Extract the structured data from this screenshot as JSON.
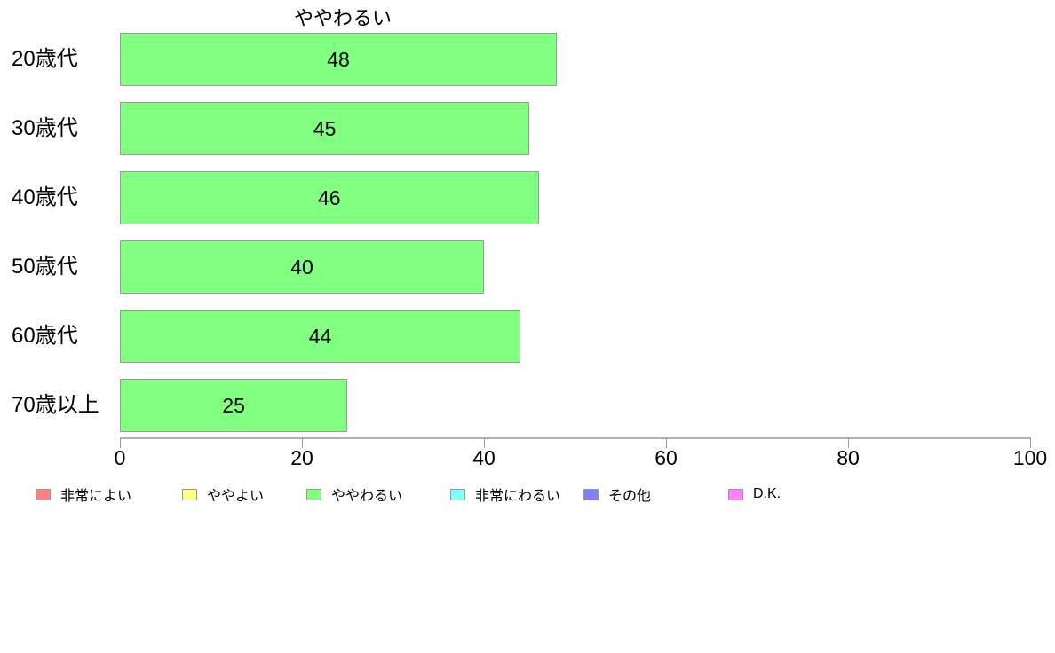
{
  "title": "ややわるい",
  "chart_data": {
    "type": "bar",
    "orientation": "horizontal",
    "title": "ややわるい",
    "categories": [
      "20歳代",
      "30歳代",
      "40歳代",
      "50歳代",
      "60歳代",
      "70歳以上"
    ],
    "values": [
      48,
      45,
      46,
      40,
      44,
      25
    ],
    "value_labels_shown": true,
    "xlabel": "",
    "ylabel": "",
    "xlim": [
      0,
      100
    ],
    "x_ticks": [
      0,
      20,
      40,
      60,
      80,
      100
    ],
    "grid": false,
    "bar_color": "#80FF80",
    "bar_border_color": "#9c9c9c",
    "legend_position": "bottom-left"
  },
  "legend": {
    "items": [
      {
        "label": "非常によい",
        "color": "#FF8080"
      },
      {
        "label": "ややよい",
        "color": "#FFFF80"
      },
      {
        "label": "ややわるい",
        "color": "#80FF80"
      },
      {
        "label": "非常にわるい",
        "color": "#80FFFF"
      },
      {
        "label": "その他",
        "color": "#8080FF"
      },
      {
        "label": "D.K.",
        "color": "#FF80FF"
      }
    ]
  }
}
